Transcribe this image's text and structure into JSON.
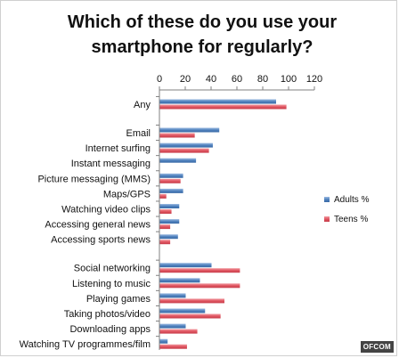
{
  "chart_data": {
    "type": "bar",
    "orientation": "horizontal",
    "title_lines": [
      "Which of these do you use your",
      "smartphone for regularly?"
    ],
    "categories": [
      "Any",
      "Email",
      "Internet surfing",
      "Instant messaging",
      "Picture messaging (MMS)",
      "Maps/GPS",
      "Watching video clips",
      "Accessing general news",
      "Accessing sports news",
      "Social networking",
      "Listening to music",
      "Playing games",
      "Taking photos/video",
      "Downloading apps",
      "Watching TV programmes/film"
    ],
    "groups": [
      [
        0
      ],
      [
        1,
        2,
        3,
        4,
        5,
        6,
        7,
        8
      ],
      [
        9,
        10,
        11,
        12,
        13,
        14
      ]
    ],
    "series": [
      {
        "name": "Adults %",
        "color": "#4f81bd",
        "values": [
          90,
          46,
          41,
          28,
          18,
          18,
          15,
          15,
          14,
          40,
          31,
          20,
          35,
          20,
          6
        ]
      },
      {
        "name": "Teens %",
        "color": "#e05561",
        "values": [
          98,
          27,
          38,
          0,
          16,
          5,
          9,
          8,
          8,
          62,
          62,
          50,
          47,
          29,
          21
        ]
      }
    ],
    "xlim": [
      0,
      120
    ],
    "xticks": [
      0,
      20,
      40,
      60,
      80,
      100,
      120
    ],
    "grid": false,
    "legend_position": "right"
  },
  "watermark": "OFCOM"
}
